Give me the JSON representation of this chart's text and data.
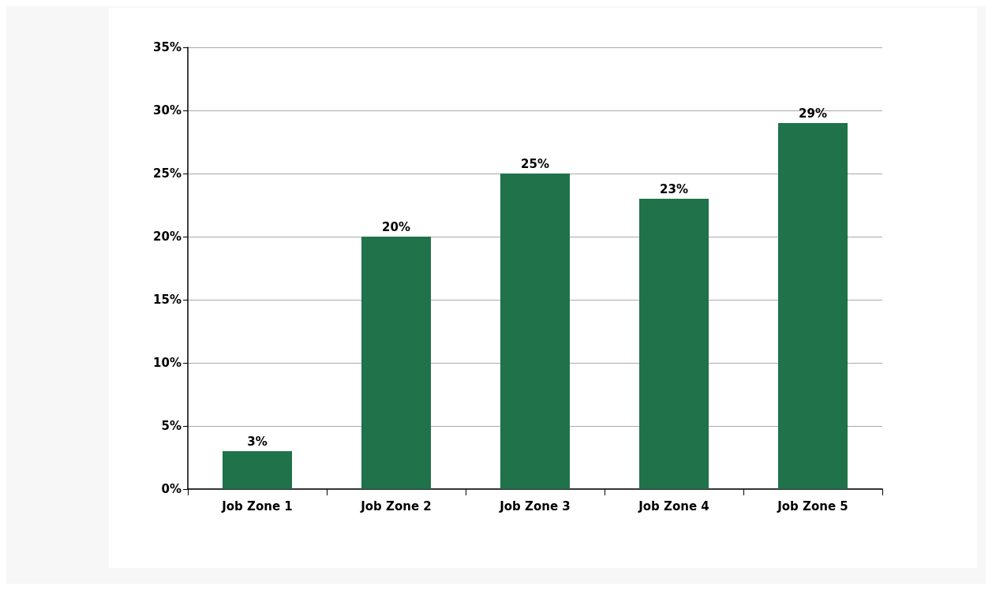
{
  "chart_data": {
    "type": "bar",
    "categories": [
      "Job Zone 1",
      "Job Zone 2",
      "Job Zone 3",
      "Job Zone 4",
      "Job Zone 5"
    ],
    "values": [
      3,
      20,
      25,
      23,
      29
    ],
    "value_labels": [
      "3%",
      "20%",
      "25%",
      "23%",
      "29%"
    ],
    "color": "#1f7249",
    "ylim": [
      0,
      35
    ],
    "yticks": [
      {
        "value": 0,
        "label": "0%"
      },
      {
        "value": 5,
        "label": "5%"
      },
      {
        "value": 10,
        "label": "10%"
      },
      {
        "value": 15,
        "label": "15%"
      },
      {
        "value": 20,
        "label": "20%"
      },
      {
        "value": 25,
        "label": "25%"
      },
      {
        "value": 30,
        "label": "30%"
      },
      {
        "value": 35,
        "label": "35%"
      }
    ],
    "grid": "y"
  }
}
